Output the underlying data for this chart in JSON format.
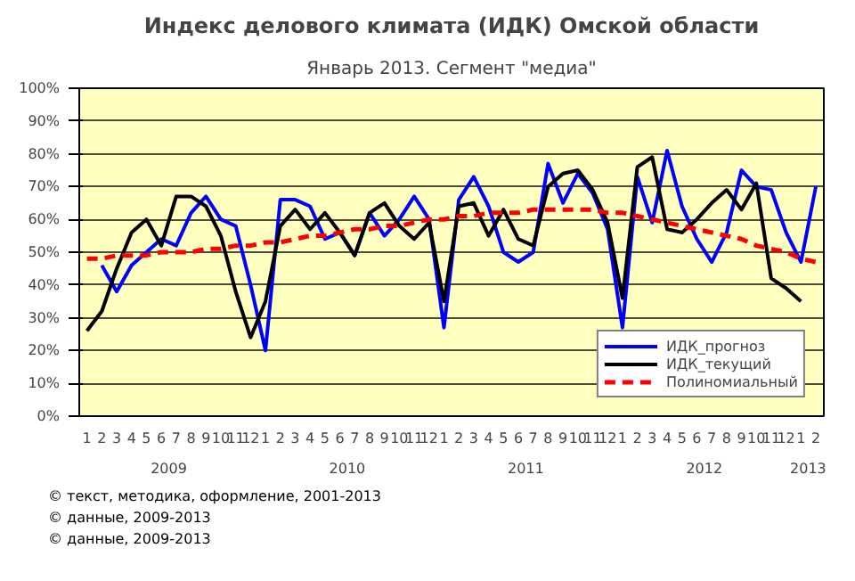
{
  "chart_data": {
    "type": "line",
    "title": "Индекс делового климата (ИДК) Омской области",
    "subtitle": "Январь 2013. Сегмент \"медиа\"",
    "x": [
      "2009-01",
      "2009-02",
      "2009-03",
      "2009-04",
      "2009-05",
      "2009-06",
      "2009-07",
      "2009-08",
      "2009-09",
      "2009-10",
      "2009-11",
      "2009-12",
      "2010-01",
      "2010-02",
      "2010-03",
      "2010-04",
      "2010-05",
      "2010-06",
      "2010-07",
      "2010-08",
      "2010-09",
      "2010-10",
      "2010-11",
      "2010-12",
      "2011-01",
      "2011-02",
      "2011-03",
      "2011-04",
      "2011-05",
      "2011-06",
      "2011-07",
      "2011-08",
      "2011-09",
      "2011-10",
      "2011-11",
      "2011-12",
      "2012-01",
      "2012-02",
      "2012-03",
      "2012-04",
      "2012-05",
      "2012-06",
      "2012-07",
      "2012-08",
      "2012-09",
      "2012-10",
      "2012-11",
      "2012-12",
      "2013-01",
      "2013-02"
    ],
    "xlim": [
      "2008-12-16",
      "2013-02-16"
    ],
    "xticks": [
      {
        "value": "2009-01",
        "label": "1"
      },
      {
        "value": "2009-02",
        "label": "2"
      },
      {
        "value": "2009-03",
        "label": "3"
      },
      {
        "value": "2009-04",
        "label": "4"
      },
      {
        "value": "2009-05",
        "label": "5"
      },
      {
        "value": "2009-06",
        "label": "6"
      },
      {
        "value": "2009-07",
        "label": "7"
      },
      {
        "value": "2009-08",
        "label": "8"
      },
      {
        "value": "2009-09",
        "label": "9"
      },
      {
        "value": "2009-10",
        "label": "10"
      },
      {
        "value": "2009-11",
        "label": "11"
      },
      {
        "value": "2009-12",
        "label": "12"
      },
      {
        "value": "2010-01",
        "label": "1"
      },
      {
        "value": "2010-02",
        "label": "2"
      },
      {
        "value": "2010-03",
        "label": "3"
      },
      {
        "value": "2010-04",
        "label": "4"
      },
      {
        "value": "2010-05",
        "label": "5"
      },
      {
        "value": "2010-06",
        "label": "6"
      },
      {
        "value": "2010-07",
        "label": "7"
      },
      {
        "value": "2010-08",
        "label": "8"
      },
      {
        "value": "2010-09",
        "label": "9"
      },
      {
        "value": "2010-10",
        "label": "10"
      },
      {
        "value": "2010-11",
        "label": "11"
      },
      {
        "value": "2010-12",
        "label": "12"
      },
      {
        "value": "2011-01",
        "label": "1"
      },
      {
        "value": "2011-02",
        "label": "2"
      },
      {
        "value": "2011-03",
        "label": "3"
      },
      {
        "value": "2011-04",
        "label": "4"
      },
      {
        "value": "2011-05",
        "label": "5"
      },
      {
        "value": "2011-06",
        "label": "6"
      },
      {
        "value": "2011-07",
        "label": "7"
      },
      {
        "value": "2011-08",
        "label": "8"
      },
      {
        "value": "2011-09",
        "label": "9"
      },
      {
        "value": "2011-10",
        "label": "10"
      },
      {
        "value": "2011-11",
        "label": "11"
      },
      {
        "value": "2011-12",
        "label": "12"
      },
      {
        "value": "2012-01",
        "label": "1"
      },
      {
        "value": "2012-02",
        "label": "2"
      },
      {
        "value": "2012-03",
        "label": "3"
      },
      {
        "value": "2012-04",
        "label": "4"
      },
      {
        "value": "2012-05",
        "label": "5"
      },
      {
        "value": "2012-06",
        "label": "6"
      },
      {
        "value": "2012-07",
        "label": "7"
      },
      {
        "value": "2012-08",
        "label": "8"
      },
      {
        "value": "2012-09",
        "label": "9"
      },
      {
        "value": "2012-10",
        "label": "10"
      },
      {
        "value": "2012-11",
        "label": "11"
      },
      {
        "value": "2012-12",
        "label": "12"
      },
      {
        "value": "2013-01",
        "label": "1"
      },
      {
        "value": "2013-02",
        "label": "2"
      }
    ],
    "x2lim": [
      "2008-12-16",
      "2013-02-16"
    ],
    "x2ticks": [
      {
        "value": "2009-06-16",
        "label": "2009"
      },
      {
        "value": "2010-06-16",
        "label": "2010"
      },
      {
        "value": "2011-06-16",
        "label": "2011"
      },
      {
        "value": "2012-06-16",
        "label": "2012"
      },
      {
        "value": "2013-01-16",
        "label": "2013"
      }
    ],
    "series": [
      {
        "name": "ИДК_прогноз",
        "color": "#0000ff",
        "values": [
          null,
          46,
          38,
          46,
          50,
          54,
          52,
          62,
          67,
          60,
          58,
          40,
          20,
          66,
          66,
          64,
          54,
          56,
          49,
          62,
          55,
          60,
          67,
          60,
          27,
          66,
          73,
          64,
          50,
          47,
          50,
          77,
          65,
          74,
          68,
          57,
          27,
          73,
          59,
          81,
          64,
          54,
          47,
          56,
          75,
          70,
          69,
          56,
          47,
          70
        ]
      },
      {
        "name": "ИДК_текущий",
        "color": "#000000",
        "values": [
          26,
          32,
          45,
          56,
          60,
          52,
          67,
          67,
          64,
          55,
          38,
          24,
          35,
          58,
          63,
          57,
          62,
          56,
          49,
          62,
          65,
          58,
          54,
          59,
          35,
          64,
          65,
          55,
          63,
          54,
          52,
          70,
          74,
          75,
          69,
          59,
          36,
          76,
          79,
          57,
          56,
          60,
          65,
          69,
          63,
          71,
          42,
          39,
          35,
          null
        ]
      },
      {
        "name": "Полиномиальный",
        "color": "#ff0000",
        "line_style": "dashed",
        "values": [
          48,
          48,
          49,
          49,
          49,
          50,
          50,
          50,
          51,
          51,
          52,
          52,
          53,
          53,
          54,
          55,
          55,
          56,
          57,
          57,
          58,
          58,
          59,
          60,
          60,
          61,
          61,
          62,
          62,
          62,
          63,
          63,
          63,
          63,
          63,
          62,
          62,
          61,
          60,
          59,
          58,
          57,
          56,
          55,
          54,
          52,
          51,
          50,
          48,
          47
        ]
      }
    ],
    "ylim": [
      0,
      100
    ],
    "yticks": [
      {
        "value": 0,
        "label": "0%"
      },
      {
        "value": 10,
        "label": "10%"
      },
      {
        "value": 20,
        "label": "20%"
      },
      {
        "value": 30,
        "label": "30%"
      },
      {
        "value": 40,
        "label": "40%"
      },
      {
        "value": 50,
        "label": "50%"
      },
      {
        "value": 60,
        "label": "60%"
      },
      {
        "value": 70,
        "label": "70%"
      },
      {
        "value": 80,
        "label": "80%"
      },
      {
        "value": 90,
        "label": "90%"
      },
      {
        "value": 100,
        "label": "100%"
      }
    ],
    "grid": "y",
    "legend": "bottom right",
    "marker": "none",
    "line_style": "solid",
    "annotations": [
      "© текст, методика, оформление, 2001-2013",
      "© данные, 2009-2013",
      "© данные, 2009-2013"
    ]
  }
}
